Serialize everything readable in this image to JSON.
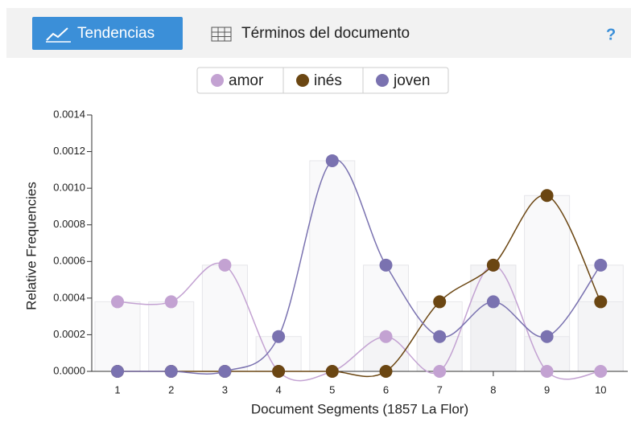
{
  "toolbar": {
    "tabs": [
      "Tendencias",
      "Términos del documento"
    ],
    "help": "?"
  },
  "chart_data": {
    "type": "line",
    "categories": [
      "1",
      "2",
      "3",
      "4",
      "5",
      "6",
      "7",
      "8",
      "9",
      "10"
    ],
    "series": [
      {
        "name": "amor",
        "color": "#c3a2d2",
        "values": [
          0.00038,
          0.00038,
          0.00058,
          0,
          0,
          0.00019,
          0,
          0.00058,
          0,
          0
        ]
      },
      {
        "name": "inés",
        "color": "#6b4612",
        "values": [
          0,
          0,
          0,
          0,
          0,
          0,
          0.00038,
          0.00058,
          0.00096,
          0.00038
        ]
      },
      {
        "name": "joven",
        "color": "#7a72b0",
        "values": [
          0,
          0,
          0,
          0.00019,
          0.00115,
          0.00058,
          0.00019,
          0.00038,
          0.00019,
          0.00058
        ]
      }
    ],
    "ylim": [
      0,
      0.0014
    ],
    "yticks": [
      {
        "value": 0,
        "label": "0.0000"
      },
      {
        "value": 0.0002,
        "label": "0.0002"
      },
      {
        "value": 0.0004,
        "label": "0.0004"
      },
      {
        "value": 0.0006,
        "label": "0.0006"
      },
      {
        "value": 0.0008,
        "label": "0.0008"
      },
      {
        "value": 0.001,
        "label": "0.0010"
      },
      {
        "value": 0.0012,
        "label": "0.0012"
      },
      {
        "value": 0.0014,
        "label": "0.0014"
      }
    ],
    "xlabel": "Document Segments (1857 La Flor)",
    "ylabel": "Relative Frequencies"
  }
}
